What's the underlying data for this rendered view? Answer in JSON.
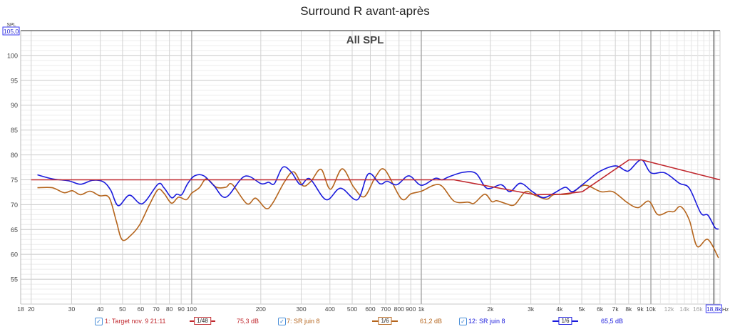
{
  "title": "Surround R avant-après",
  "chart_data": {
    "type": "line",
    "title": "Surround R avant-après",
    "annotation": "All SPL",
    "ylabel": "SPL",
    "xunit": "Hz",
    "xscale": "log",
    "xlim": [
      18,
      20000
    ],
    "ylim": [
      50,
      105
    ],
    "y_top_readout": "105,0",
    "cursor_readout": "18,8k",
    "cursor_x": 18800,
    "grid": true,
    "yticks": [
      55,
      60,
      65,
      70,
      75,
      80,
      85,
      90,
      95,
      100
    ],
    "xticks": [
      {
        "v": 18,
        "label": "18"
      },
      {
        "v": 20,
        "label": "20"
      },
      {
        "v": 30,
        "label": "30"
      },
      {
        "v": 40,
        "label": "40"
      },
      {
        "v": 50,
        "label": "50"
      },
      {
        "v": 60,
        "label": "60"
      },
      {
        "v": 70,
        "label": "70"
      },
      {
        "v": 80,
        "label": "80"
      },
      {
        "v": 90,
        "label": "90"
      },
      {
        "v": 100,
        "label": "100"
      },
      {
        "v": 200,
        "label": "200"
      },
      {
        "v": 300,
        "label": "300"
      },
      {
        "v": 400,
        "label": "400"
      },
      {
        "v": 500,
        "label": "500"
      },
      {
        "v": 600,
        "label": "600"
      },
      {
        "v": 700,
        "label": "700"
      },
      {
        "v": 800,
        "label": "800"
      },
      {
        "v": 900,
        "label": "900"
      },
      {
        "v": 1000,
        "label": "1k"
      },
      {
        "v": 2000,
        "label": "2k"
      },
      {
        "v": 3000,
        "label": "3k"
      },
      {
        "v": 4000,
        "label": "4k"
      },
      {
        "v": 5000,
        "label": "5k"
      },
      {
        "v": 6000,
        "label": "6k"
      },
      {
        "v": 7000,
        "label": "7k"
      },
      {
        "v": 8000,
        "label": "8k"
      },
      {
        "v": 9000,
        "label": "9k"
      },
      {
        "v": 10000,
        "label": "10k"
      },
      {
        "v": 12000,
        "label": "12k",
        "dim": true
      },
      {
        "v": 14000,
        "label": "14k",
        "dim": true
      },
      {
        "v": 16000,
        "label": "16k",
        "dim": true
      }
    ],
    "series": [
      {
        "name": "1: Target nov. 9 21:11",
        "color": "#c0282e",
        "smoothing": "1/48",
        "readout": "75,3 dB",
        "x": [
          20,
          1390,
          3120,
          4060,
          5030,
          8020,
          9100,
          20000
        ],
        "y": [
          75,
          75,
          72,
          72.1,
          72.6,
          79,
          79,
          75
        ]
      },
      {
        "name": "7: SR juin 8",
        "color": "#b5651d",
        "smoothing": "1/6",
        "readout": "61,2 dB",
        "x": [
          21.3,
          24.7,
          27.8,
          30.2,
          32.8,
          36.1,
          39.7,
          43.7,
          47,
          49.9,
          54.8,
          59.6,
          65.5,
          71.3,
          75.7,
          81.7,
          87.7,
          94.8,
          100,
          108,
          116,
          128,
          141,
          150,
          174,
          190,
          211,
          226,
          253,
          278,
          305,
          331,
          366,
          402,
          452,
          508,
          565,
          632,
          694,
          818,
          903,
          1000,
          1200,
          1390,
          1600,
          1700,
          1890,
          2030,
          2130,
          2340,
          2550,
          2840,
          3120,
          3520,
          3780,
          4450,
          5140,
          6060,
          6840,
          7900,
          8800,
          9800,
          10700,
          11900,
          12600,
          13500,
          14700,
          15900,
          17700,
          19700
        ],
        "y": [
          73.4,
          73.4,
          72.4,
          72.8,
          72,
          72.7,
          71.8,
          71.4,
          66.6,
          62.9,
          64,
          66.1,
          70,
          73,
          72.3,
          70.3,
          71.5,
          71,
          72.3,
          73.4,
          75.2,
          73.5,
          73.5,
          74.1,
          70.2,
          71.3,
          69.2,
          70.4,
          74.5,
          76.6,
          73.8,
          74.7,
          77.1,
          73.1,
          77.2,
          73.5,
          71.6,
          75.6,
          77,
          71.2,
          72.2,
          72.7,
          74,
          70.7,
          70.5,
          70.3,
          72.1,
          70.6,
          70.8,
          70.2,
          70,
          72.6,
          71.9,
          71.1,
          72,
          72.2,
          73.9,
          72.6,
          72.6,
          70.4,
          69.4,
          70.7,
          68,
          68.6,
          68.6,
          69.6,
          66.9,
          61.6,
          63,
          59.3
        ]
      },
      {
        "name": "12: SR juin 8",
        "color": "#1a1adc",
        "smoothing": "1/6",
        "readout": "65,5 dB",
        "x": [
          21.3,
          24.7,
          29.1,
          32.8,
          37,
          41.2,
          44.4,
          47.9,
          53.6,
          61,
          71.3,
          75.7,
          81.7,
          86.1,
          90.5,
          96,
          103,
          113,
          125,
          141,
          170,
          201,
          216,
          229,
          249,
          271,
          298,
          327,
          385,
          445,
          527,
          588,
          661,
          710,
          783,
          883,
          1000,
          1150,
          1230,
          1320,
          1520,
          1730,
          1930,
          2230,
          2430,
          2700,
          3050,
          3400,
          3780,
          4240,
          4550,
          5030,
          5940,
          7000,
          7700,
          8070,
          9100,
          10000,
          11500,
          13300,
          14700,
          16500,
          17700,
          19000,
          19700
        ],
        "y": [
          76,
          75.2,
          74.8,
          74.1,
          74.9,
          74.6,
          72.9,
          69.8,
          71.9,
          70.2,
          74.1,
          73.4,
          71.4,
          72.1,
          72,
          74.2,
          75.8,
          75.8,
          73.8,
          71.5,
          75.7,
          74.2,
          74.5,
          74.2,
          77.5,
          76.6,
          74,
          75.2,
          71,
          73.3,
          71,
          76.2,
          74.2,
          74.7,
          74,
          75.8,
          73.9,
          75.3,
          75,
          75.6,
          76.5,
          76.3,
          73.3,
          74,
          72.6,
          74.3,
          72.6,
          71.4,
          72.3,
          73.5,
          72.6,
          74,
          76.6,
          77.8,
          76.9,
          76.9,
          79,
          76.4,
          76.4,
          74.3,
          73.3,
          68.3,
          67.9,
          65.4,
          65.1
        ]
      }
    ]
  }
}
